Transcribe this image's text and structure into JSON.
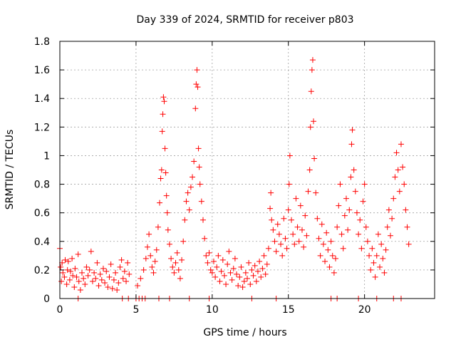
{
  "chart_data": {
    "type": "scatter",
    "title": "Day 339 of 2024, SRMTID for receiver p803",
    "xlabel": "GPS time / hours",
    "ylabel": "SRMTID / TECUs",
    "xlim": [
      0,
      24.6
    ],
    "ylim": [
      0,
      1.8
    ],
    "xticks": [
      0,
      5,
      10,
      15,
      20
    ],
    "xtick_labels": [
      "0",
      "5",
      "10",
      "15",
      "20"
    ],
    "yticks": [
      0,
      0.2,
      0.4,
      0.6,
      0.8,
      1.0,
      1.2,
      1.4,
      1.6,
      1.8
    ],
    "ytick_labels": [
      "0",
      "0.2",
      "0.4",
      "0.6",
      "0.8",
      "1",
      "1.2",
      "1.4",
      "1.6",
      "1.8"
    ],
    "grid": true,
    "marker": "+",
    "marker_color": "#ff0000",
    "series": [
      {
        "name": "SRMTID",
        "points": [
          [
            0.0,
            0.35
          ],
          [
            0.05,
            0.22
          ],
          [
            0.1,
            0.12
          ],
          [
            0.15,
            0.25
          ],
          [
            0.2,
            0.18
          ],
          [
            0.3,
            0.15
          ],
          [
            0.35,
            0.27
          ],
          [
            0.45,
            0.1
          ],
          [
            0.5,
            0.2
          ],
          [
            0.55,
            0.26
          ],
          [
            0.65,
            0.13
          ],
          [
            0.7,
            0.19
          ],
          [
            0.8,
            0.28
          ],
          [
            0.85,
            0.16
          ],
          [
            0.95,
            0.08
          ],
          [
            1.0,
            0.21
          ],
          [
            1.1,
            0.15
          ],
          [
            1.2,
            0.31
          ],
          [
            1.25,
            0.12
          ],
          [
            1.35,
            0.06
          ],
          [
            1.45,
            0.18
          ],
          [
            1.55,
            0.14
          ],
          [
            1.65,
            0.1
          ],
          [
            1.75,
            0.22
          ],
          [
            1.85,
            0.16
          ],
          [
            1.95,
            0.2
          ],
          [
            2.05,
            0.33
          ],
          [
            2.15,
            0.12
          ],
          [
            2.25,
            0.18
          ],
          [
            2.35,
            0.14
          ],
          [
            2.45,
            0.25
          ],
          [
            2.55,
            0.09
          ],
          [
            2.65,
            0.17
          ],
          [
            2.75,
            0.13
          ],
          [
            2.85,
            0.21
          ],
          [
            2.95,
            0.11
          ],
          [
            3.05,
            0.19
          ],
          [
            3.15,
            0.08
          ],
          [
            3.25,
            0.15
          ],
          [
            3.35,
            0.24
          ],
          [
            3.45,
            0.07
          ],
          [
            3.55,
            0.13
          ],
          [
            3.65,
            0.18
          ],
          [
            3.75,
            0.06
          ],
          [
            3.85,
            0.11
          ],
          [
            3.95,
            0.22
          ],
          [
            4.05,
            0.27
          ],
          [
            4.15,
            0.14
          ],
          [
            4.25,
            0.19
          ],
          [
            4.35,
            0.12
          ],
          [
            4.45,
            0.25
          ],
          [
            4.55,
            0.17
          ],
          [
            5.0,
            0.0
          ],
          [
            5.2,
            0.0
          ],
          [
            5.4,
            0.0
          ],
          [
            5.1,
            0.09
          ],
          [
            5.3,
            0.14
          ],
          [
            5.5,
            0.2
          ],
          [
            5.65,
            0.28
          ],
          [
            5.75,
            0.36
          ],
          [
            5.85,
            0.45
          ],
          [
            5.95,
            0.3
          ],
          [
            6.05,
            0.22
          ],
          [
            6.15,
            0.18
          ],
          [
            6.25,
            0.26
          ],
          [
            6.35,
            0.34
          ],
          [
            6.45,
            0.5
          ],
          [
            6.55,
            0.67
          ],
          [
            6.62,
            0.84
          ],
          [
            6.68,
            0.9
          ],
          [
            6.72,
            1.17
          ],
          [
            6.76,
            1.29
          ],
          [
            6.8,
            1.41
          ],
          [
            6.85,
            1.38
          ],
          [
            6.9,
            1.05
          ],
          [
            6.95,
            0.88
          ],
          [
            7.0,
            0.72
          ],
          [
            7.05,
            0.6
          ],
          [
            7.1,
            0.48
          ],
          [
            7.2,
            0.38
          ],
          [
            7.3,
            0.28
          ],
          [
            7.4,
            0.22
          ],
          [
            7.5,
            0.18
          ],
          [
            7.6,
            0.25
          ],
          [
            7.7,
            0.32
          ],
          [
            7.8,
            0.2
          ],
          [
            7.9,
            0.14
          ],
          [
            8.0,
            0.27
          ],
          [
            8.1,
            0.4
          ],
          [
            8.2,
            0.55
          ],
          [
            8.3,
            0.68
          ],
          [
            8.4,
            0.74
          ],
          [
            8.5,
            0.62
          ],
          [
            8.6,
            0.78
          ],
          [
            8.7,
            0.85
          ],
          [
            8.8,
            0.96
          ],
          [
            8.9,
            1.33
          ],
          [
            8.95,
            1.5
          ],
          [
            9.0,
            1.6
          ],
          [
            9.05,
            1.48
          ],
          [
            9.1,
            1.05
          ],
          [
            9.15,
            0.92
          ],
          [
            9.2,
            0.8
          ],
          [
            9.3,
            0.68
          ],
          [
            9.4,
            0.55
          ],
          [
            9.5,
            0.42
          ],
          [
            9.6,
            0.3
          ],
          [
            9.7,
            0.25
          ],
          [
            9.8,
            0.32
          ],
          [
            9.9,
            0.2
          ],
          [
            10.0,
            0.18
          ],
          [
            10.1,
            0.26
          ],
          [
            10.2,
            0.15
          ],
          [
            10.3,
            0.22
          ],
          [
            10.4,
            0.3
          ],
          [
            10.5,
            0.12
          ],
          [
            10.6,
            0.19
          ],
          [
            10.7,
            0.27
          ],
          [
            10.8,
            0.16
          ],
          [
            10.9,
            0.1
          ],
          [
            11.0,
            0.24
          ],
          [
            11.1,
            0.33
          ],
          [
            11.2,
            0.18
          ],
          [
            11.3,
            0.13
          ],
          [
            11.4,
            0.21
          ],
          [
            11.5,
            0.28
          ],
          [
            11.6,
            0.17
          ],
          [
            11.7,
            0.09
          ],
          [
            11.8,
            0.15
          ],
          [
            11.9,
            0.22
          ],
          [
            12.0,
            0.08
          ],
          [
            12.1,
            0.12
          ],
          [
            12.2,
            0.18
          ],
          [
            12.3,
            0.14
          ],
          [
            12.4,
            0.25
          ],
          [
            12.5,
            0.1
          ],
          [
            12.6,
            0.2
          ],
          [
            12.7,
            0.16
          ],
          [
            12.8,
            0.23
          ],
          [
            12.9,
            0.12
          ],
          [
            13.0,
            0.19
          ],
          [
            13.1,
            0.26
          ],
          [
            13.2,
            0.15
          ],
          [
            13.3,
            0.21
          ],
          [
            13.4,
            0.3
          ],
          [
            13.5,
            0.17
          ],
          [
            13.6,
            0.24
          ],
          [
            13.7,
            0.35
          ],
          [
            13.8,
            0.63
          ],
          [
            13.85,
            0.74
          ],
          [
            13.9,
            0.55
          ],
          [
            14.0,
            0.48
          ],
          [
            14.1,
            0.4
          ],
          [
            14.2,
            0.33
          ],
          [
            14.3,
            0.52
          ],
          [
            14.4,
            0.45
          ],
          [
            14.5,
            0.38
          ],
          [
            14.6,
            0.3
          ],
          [
            14.7,
            0.56
          ],
          [
            14.8,
            0.42
          ],
          [
            14.9,
            0.35
          ],
          [
            15.0,
            0.62
          ],
          [
            15.05,
            0.8
          ],
          [
            15.1,
            1.0
          ],
          [
            15.2,
            0.55
          ],
          [
            15.3,
            0.45
          ],
          [
            15.4,
            0.38
          ],
          [
            15.5,
            0.7
          ],
          [
            15.6,
            0.5
          ],
          [
            15.7,
            0.4
          ],
          [
            15.8,
            0.65
          ],
          [
            15.9,
            0.48
          ],
          [
            16.0,
            0.36
          ],
          [
            16.1,
            0.58
          ],
          [
            16.2,
            0.44
          ],
          [
            16.3,
            0.75
          ],
          [
            16.4,
            0.9
          ],
          [
            16.45,
            1.2
          ],
          [
            16.5,
            1.45
          ],
          [
            16.55,
            1.6
          ],
          [
            16.6,
            1.67
          ],
          [
            16.65,
            1.24
          ],
          [
            16.7,
            0.98
          ],
          [
            16.8,
            0.74
          ],
          [
            16.9,
            0.56
          ],
          [
            17.0,
            0.42
          ],
          [
            17.1,
            0.3
          ],
          [
            17.2,
            0.52
          ],
          [
            17.3,
            0.38
          ],
          [
            17.4,
            0.26
          ],
          [
            17.5,
            0.46
          ],
          [
            17.6,
            0.34
          ],
          [
            17.7,
            0.22
          ],
          [
            17.8,
            0.4
          ],
          [
            17.9,
            0.3
          ],
          [
            18.0,
            0.18
          ],
          [
            18.1,
            0.28
          ],
          [
            18.2,
            0.5
          ],
          [
            18.3,
            0.65
          ],
          [
            18.4,
            0.8
          ],
          [
            18.5,
            0.45
          ],
          [
            18.6,
            0.35
          ],
          [
            18.7,
            0.58
          ],
          [
            18.8,
            0.7
          ],
          [
            18.9,
            0.48
          ],
          [
            19.0,
            0.62
          ],
          [
            19.1,
            0.85
          ],
          [
            19.15,
            1.08
          ],
          [
            19.2,
            1.18
          ],
          [
            19.3,
            0.9
          ],
          [
            19.4,
            0.75
          ],
          [
            19.5,
            0.6
          ],
          [
            19.6,
            0.45
          ],
          [
            19.7,
            0.55
          ],
          [
            19.8,
            0.35
          ],
          [
            19.9,
            0.68
          ],
          [
            20.0,
            0.8
          ],
          [
            20.1,
            0.5
          ],
          [
            20.2,
            0.4
          ],
          [
            20.3,
            0.3
          ],
          [
            20.4,
            0.2
          ],
          [
            20.5,
            0.35
          ],
          [
            20.6,
            0.25
          ],
          [
            20.7,
            0.15
          ],
          [
            20.8,
            0.3
          ],
          [
            20.9,
            0.45
          ],
          [
            21.0,
            0.22
          ],
          [
            21.1,
            0.38
          ],
          [
            21.2,
            0.28
          ],
          [
            21.3,
            0.18
          ],
          [
            21.4,
            0.34
          ],
          [
            21.5,
            0.5
          ],
          [
            21.6,
            0.62
          ],
          [
            21.7,
            0.44
          ],
          [
            21.8,
            0.56
          ],
          [
            21.9,
            0.7
          ],
          [
            22.0,
            0.85
          ],
          [
            22.1,
            1.02
          ],
          [
            22.2,
            0.9
          ],
          [
            22.3,
            0.75
          ],
          [
            22.4,
            1.08
          ],
          [
            22.5,
            0.92
          ],
          [
            22.6,
            0.8
          ],
          [
            22.7,
            0.62
          ],
          [
            22.8,
            0.5
          ],
          [
            22.9,
            0.38
          ],
          [
            1.2,
            0.0
          ],
          [
            4.1,
            0.0
          ],
          [
            4.5,
            0.0
          ],
          [
            5.6,
            0.0
          ],
          [
            6.5,
            0.0
          ],
          [
            7.2,
            0.0
          ],
          [
            8.5,
            0.0
          ],
          [
            9.8,
            0.0
          ],
          [
            12.6,
            0.0
          ],
          [
            14.2,
            0.0
          ],
          [
            17.8,
            0.0
          ],
          [
            18.2,
            0.0
          ],
          [
            19.6,
            0.0
          ],
          [
            20.8,
            0.0
          ],
          [
            21.9,
            0.0
          ],
          [
            22.4,
            0.0
          ]
        ]
      }
    ]
  }
}
